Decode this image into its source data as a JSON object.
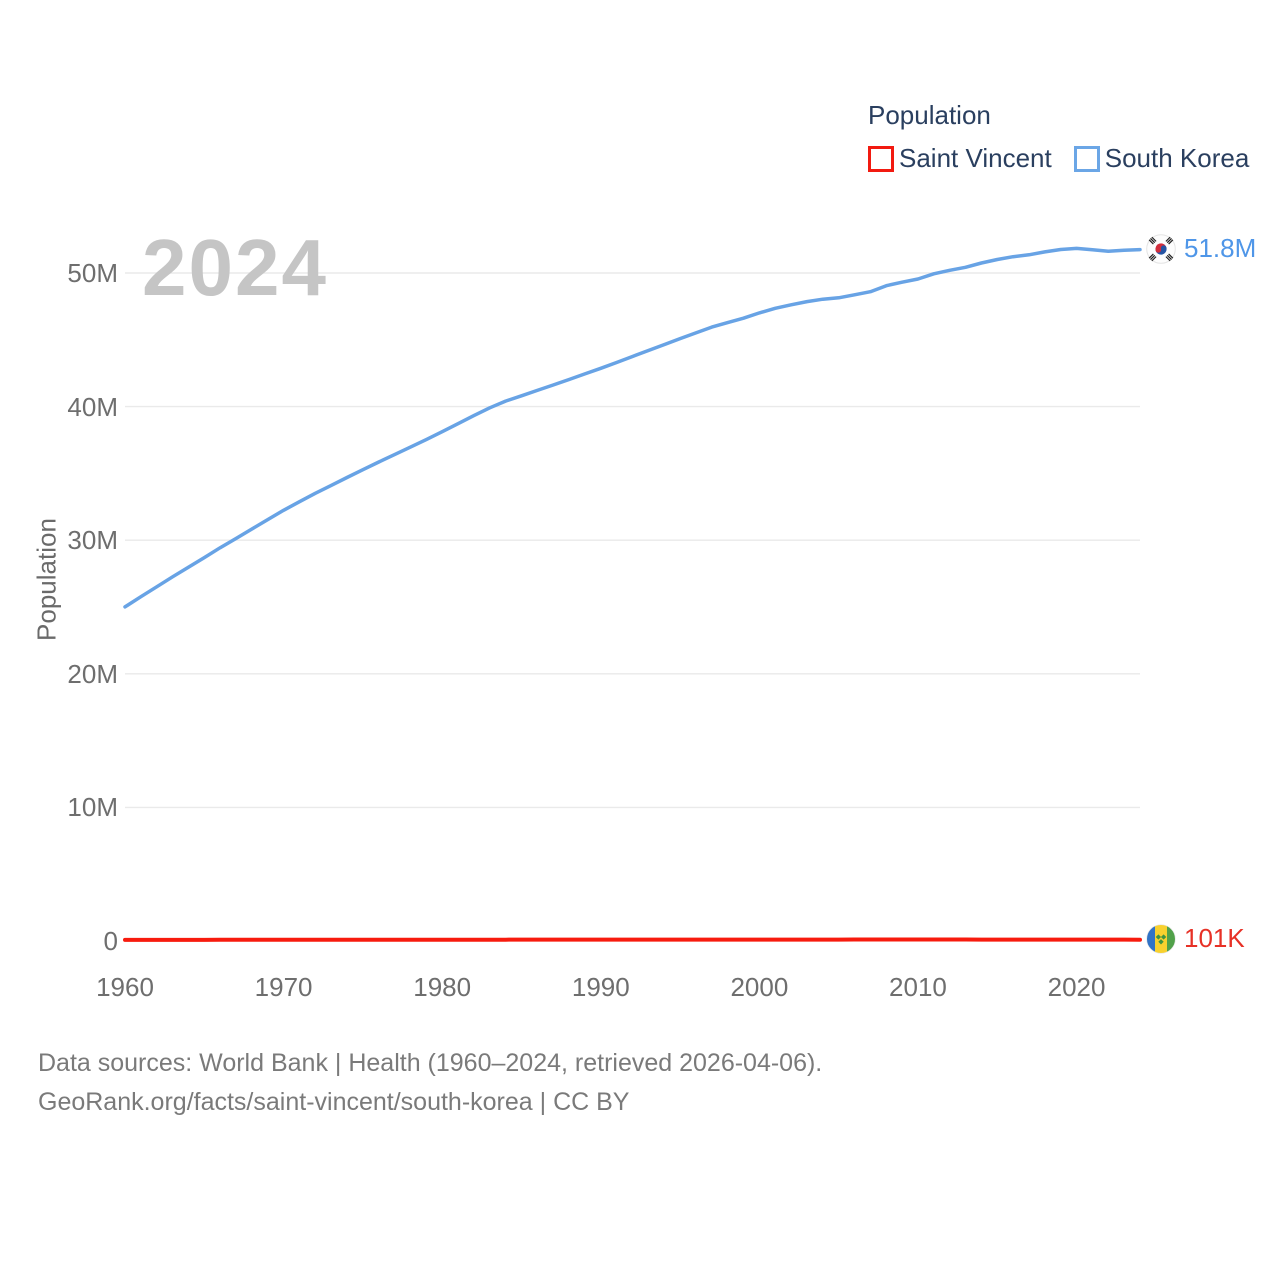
{
  "legend": {
    "title": "Population",
    "items": [
      {
        "label": "Saint Vincent",
        "color": "#f21a10"
      },
      {
        "label": "South Korea",
        "color": "#6ba6e6"
      }
    ]
  },
  "watermark_year": "2024",
  "y_axis_title": "Population",
  "end_labels": {
    "south_korea": {
      "value": "51.8M",
      "color": "#4f96e8",
      "flag": "south-korea-flag"
    },
    "saint_vincent": {
      "value": "101K",
      "color": "#e73126",
      "flag": "saint-vincent-flag"
    }
  },
  "footer": {
    "line1": "Data sources: World Bank | Health (1960–2024, retrieved 2026-04-06).",
    "line2": "GeoRank.org/facts/saint-vincent/south-korea | CC BY"
  },
  "colors": {
    "south_korea_line": "#68a3e5",
    "saint_vincent_line": "#f71b0e",
    "gridline": "#eaeaea",
    "tick_text": "#6e6e6e",
    "legend_text": "#2a3f5f",
    "watermark": "#c5c5c5",
    "footer_text": "#7a7a7a"
  },
  "chart_data": {
    "type": "line",
    "title": "Population",
    "xlabel": "",
    "ylabel": "Population",
    "x_range": [
      1960,
      2024
    ],
    "ylim": [
      0,
      52.5
    ],
    "grid": true,
    "legend_position": "top-right",
    "x_tick_years": [
      1960,
      1970,
      1980,
      1990,
      2000,
      2010,
      2020
    ],
    "yticks": [
      {
        "value": 0,
        "label": "0"
      },
      {
        "value": 10,
        "label": "10M"
      },
      {
        "value": 20,
        "label": "20M"
      },
      {
        "value": 30,
        "label": "30M"
      },
      {
        "value": 40,
        "label": "40M"
      },
      {
        "value": 50,
        "label": "50M"
      }
    ],
    "x": [
      1960,
      1961,
      1962,
      1963,
      1964,
      1965,
      1966,
      1967,
      1968,
      1969,
      1970,
      1971,
      1972,
      1973,
      1974,
      1975,
      1976,
      1977,
      1978,
      1979,
      1980,
      1981,
      1982,
      1983,
      1984,
      1985,
      1986,
      1987,
      1988,
      1989,
      1990,
      1991,
      1992,
      1993,
      1994,
      1995,
      1996,
      1997,
      1998,
      1999,
      2000,
      2001,
      2002,
      2003,
      2004,
      2005,
      2006,
      2007,
      2008,
      2009,
      2010,
      2011,
      2012,
      2013,
      2014,
      2015,
      2016,
      2017,
      2018,
      2019,
      2020,
      2021,
      2022,
      2023,
      2024
    ],
    "series": [
      {
        "name": "Saint Vincent",
        "color": "#f71b0e",
        "width": 4,
        "unit": "millions",
        "end_value_label": "101K",
        "values": [
          0.081,
          0.082,
          0.083,
          0.084,
          0.085,
          0.086,
          0.087,
          0.088,
          0.088,
          0.089,
          0.09,
          0.091,
          0.091,
          0.092,
          0.093,
          0.094,
          0.095,
          0.096,
          0.097,
          0.097,
          0.098,
          0.099,
          0.099,
          0.1,
          0.101,
          0.102,
          0.102,
          0.103,
          0.104,
          0.105,
          0.107,
          0.107,
          0.108,
          0.108,
          0.108,
          0.108,
          0.108,
          0.108,
          0.108,
          0.108,
          0.108,
          0.108,
          0.108,
          0.108,
          0.108,
          0.108,
          0.109,
          0.109,
          0.109,
          0.109,
          0.109,
          0.109,
          0.109,
          0.109,
          0.108,
          0.108,
          0.107,
          0.106,
          0.105,
          0.104,
          0.104,
          0.103,
          0.102,
          0.102,
          0.101
        ]
      },
      {
        "name": "South Korea",
        "color": "#68a3e5",
        "width": 3.5,
        "unit": "millions",
        "end_value_label": "51.8M",
        "values": [
          25.01,
          25.77,
          26.51,
          27.26,
          27.98,
          28.7,
          29.44,
          30.13,
          30.84,
          31.54,
          32.24,
          32.88,
          33.51,
          34.1,
          34.69,
          35.28,
          35.85,
          36.41,
          36.97,
          37.53,
          38.12,
          38.72,
          39.33,
          39.91,
          40.41,
          40.81,
          41.21,
          41.62,
          42.03,
          42.45,
          42.87,
          43.3,
          43.75,
          44.2,
          44.64,
          45.09,
          45.52,
          45.95,
          46.29,
          46.62,
          47.01,
          47.36,
          47.62,
          47.86,
          48.04,
          48.14,
          48.37,
          48.6,
          49.05,
          49.31,
          49.55,
          49.94,
          50.2,
          50.43,
          50.75,
          51.01,
          51.22,
          51.36,
          51.58,
          51.76,
          51.84,
          51.74,
          51.63,
          51.71,
          51.75
        ]
      }
    ]
  }
}
